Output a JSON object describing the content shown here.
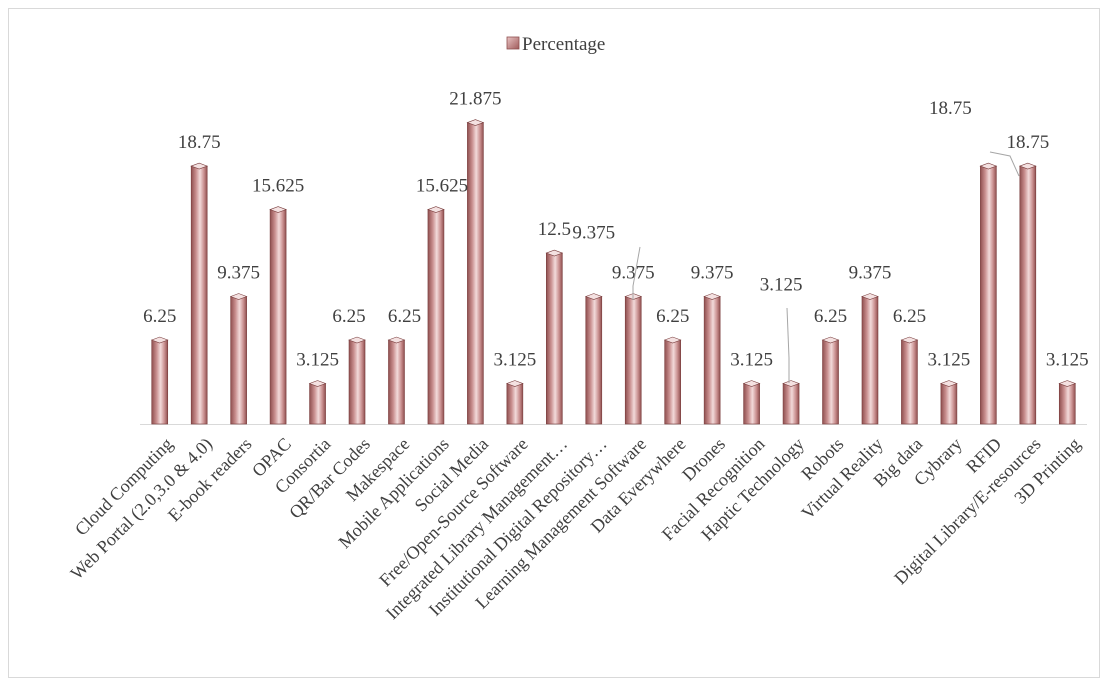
{
  "chart_data": {
    "type": "bar",
    "title": "",
    "xlabel": "",
    "ylabel": "",
    "ylim": [
      0,
      24
    ],
    "grid": false,
    "legend_position": "top-center",
    "bar_color": "#c98f8f",
    "categories": [
      "Cloud Computing",
      "Web Portal (2.0,3.0 & 4.0)",
      "E-book readers",
      "OPAC",
      "Consortia",
      "QR/Bar Codes",
      "Makespace",
      "Mobile Applications",
      "Social Media",
      "Free/Open-Source Software",
      "Integrated Library Management…",
      "Institutional Digital Repository…",
      "Learning Management Software",
      "Data Everywhere",
      "Drones",
      "Facial Recognition",
      "Haptic Technology",
      "Robots",
      "Virtual Reality",
      "Big data",
      "Cybrary",
      "RFID",
      "Digital Library/E-resources",
      "3D Printing"
    ],
    "series": [
      {
        "name": "Percentage",
        "values": [
          6.25,
          18.75,
          9.375,
          15.625,
          3.125,
          6.25,
          6.25,
          15.625,
          21.875,
          3.125,
          12.5,
          9.375,
          9.375,
          6.25,
          9.375,
          3.125,
          3.125,
          6.25,
          9.375,
          6.25,
          3.125,
          18.75,
          18.75,
          3.125
        ],
        "labels": [
          "6.25",
          "18.75",
          "9.375",
          "15.625",
          "3.125",
          "6.25",
          "6.25",
          "15.625",
          "21.875",
          "3.125",
          "12.5",
          "9.375",
          "9.375",
          "6.25",
          "9.375",
          "3.125",
          "3.125",
          "6.25",
          "9.375",
          "6.25",
          "3.125",
          "18.75",
          "18.75",
          "3.125"
        ]
      }
    ]
  }
}
